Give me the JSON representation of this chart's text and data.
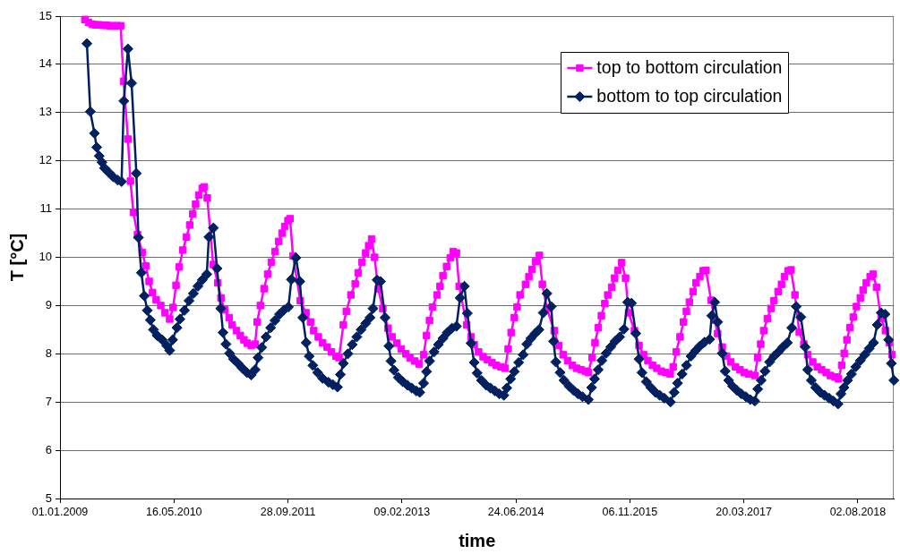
{
  "chart_data": {
    "type": "line",
    "xlabel": "time",
    "ylabel": "T [°C]",
    "xlim": [
      "2009-01-01",
      "2019-01-08"
    ],
    "xticks": [
      {
        "value": "2009-01-01",
        "label": "01.01.2009"
      },
      {
        "value": "2010-05-16",
        "label": "16.05.2010"
      },
      {
        "value": "2011-09-28",
        "label": "28.09.2011"
      },
      {
        "value": "2013-02-09",
        "label": "09.02.2013"
      },
      {
        "value": "2014-06-24",
        "label": "24.06.2014"
      },
      {
        "value": "2015-11-06",
        "label": "06.11.2015"
      },
      {
        "value": "2017-03-20",
        "label": "20.03.2017"
      },
      {
        "value": "2018-08-02",
        "label": "02.08.2018"
      }
    ],
    "ylim": [
      5,
      15
    ],
    "yticks": [
      5,
      6,
      7,
      8,
      9,
      10,
      11,
      12,
      13,
      14,
      15
    ],
    "grid": "y",
    "legend": "top right",
    "line_style": "solid",
    "series": [
      {
        "name": "top to bottom circulation",
        "color": "#ff00ff",
        "marker": "square",
        "x": [
          "2009-04-20",
          "2009-05-06",
          "2009-05-22",
          "2009-06-06",
          "2009-06-22",
          "2009-07-08",
          "2009-07-23",
          "2009-08-08",
          "2009-08-24",
          "2009-09-08",
          "2009-09-24",
          "2009-10-07",
          "2009-10-26",
          "2009-11-06",
          "2009-11-19",
          "2009-12-07",
          "2009-12-28",
          "2010-01-12",
          "2010-01-27",
          "2010-02-11",
          "2010-02-27",
          "2010-03-19",
          "2010-04-07",
          "2010-04-27",
          "2010-05-12",
          "2010-05-25",
          "2010-06-08",
          "2010-06-24",
          "2010-07-10",
          "2010-07-24",
          "2010-08-06",
          "2010-08-19",
          "2010-09-02",
          "2010-09-17",
          "2010-09-26",
          "2010-10-09",
          "2010-11-04",
          "2010-11-24",
          "2010-12-08",
          "2010-12-24",
          "2011-01-13",
          "2011-01-26",
          "2011-02-14",
          "2011-03-03",
          "2011-03-19",
          "2011-04-03",
          "2011-04-20",
          "2011-05-07",
          "2011-05-16",
          "2011-05-30",
          "2011-06-15",
          "2011-07-01",
          "2011-07-17",
          "2011-08-02",
          "2011-08-18",
          "2011-09-02",
          "2011-09-14",
          "2011-09-28",
          "2011-10-07",
          "2011-10-20",
          "2011-11-21",
          "2011-12-16",
          "2012-01-05",
          "2012-01-19",
          "2012-02-08",
          "2012-02-27",
          "2012-03-18",
          "2012-04-06",
          "2012-04-26",
          "2012-05-09",
          "2012-05-28",
          "2012-06-10",
          "2012-06-30",
          "2012-07-19",
          "2012-08-01",
          "2012-08-18",
          "2012-09-03",
          "2012-09-16",
          "2012-09-29",
          "2012-10-12",
          "2012-10-28",
          "2012-11-17",
          "2012-12-10",
          "2012-12-28",
          "2013-01-18",
          "2013-02-06",
          "2013-02-26",
          "2013-03-17",
          "2013-04-06",
          "2013-04-26",
          "2013-05-15",
          "2013-05-28",
          "2013-06-10",
          "2013-06-23",
          "2013-07-13",
          "2013-07-26",
          "2013-08-08",
          "2013-08-24",
          "2013-09-09",
          "2013-09-22",
          "2013-10-06",
          "2013-10-18",
          "2013-11-20",
          "2013-12-09",
          "2013-12-23",
          "2014-01-11",
          "2014-01-31",
          "2014-02-19",
          "2014-03-11",
          "2014-03-30",
          "2014-04-19",
          "2014-05-08",
          "2014-05-21",
          "2014-06-03",
          "2014-06-17",
          "2014-06-29",
          "2014-07-12",
          "2014-08-05",
          "2014-08-20",
          "2014-09-03",
          "2014-09-18",
          "2014-10-05",
          "2014-10-18",
          "2014-11-07",
          "2014-12-09",
          "2014-12-29",
          "2015-01-17",
          "2015-02-06",
          "2015-02-26",
          "2015-03-17",
          "2015-04-06",
          "2015-04-25",
          "2015-05-08",
          "2015-05-24",
          "2015-06-06",
          "2015-06-20",
          "2015-07-04",
          "2015-07-19",
          "2015-08-01",
          "2015-08-18",
          "2015-08-31",
          "2015-09-15",
          "2015-10-01",
          "2015-10-18",
          "2015-10-31",
          "2015-11-26",
          "2015-12-16",
          "2016-01-05",
          "2016-01-24",
          "2016-02-13",
          "2016-03-03",
          "2016-03-23",
          "2016-04-11",
          "2016-05-01",
          "2016-05-14",
          "2016-05-27",
          "2016-06-13",
          "2016-06-28",
          "2016-07-11",
          "2016-07-24",
          "2016-08-09",
          "2016-08-22",
          "2016-09-08",
          "2016-09-22",
          "2016-10-05",
          "2016-10-27",
          "2016-11-12",
          "2016-11-25",
          "2016-12-15",
          "2017-01-03",
          "2017-01-22",
          "2017-02-11",
          "2017-03-03",
          "2017-03-22",
          "2017-04-11",
          "2017-05-07",
          "2017-05-20",
          "2017-06-02",
          "2017-06-15",
          "2017-07-01",
          "2017-07-17",
          "2017-07-30",
          "2017-08-17",
          "2017-09-01",
          "2017-09-14",
          "2017-09-30",
          "2017-10-13",
          "2017-10-30",
          "2017-11-18",
          "2017-12-08",
          "2017-12-25",
          "2018-01-16",
          "2018-02-05",
          "2018-02-24",
          "2018-03-16",
          "2018-04-04",
          "2018-04-24",
          "2018-05-09",
          "2018-05-23",
          "2018-06-03",
          "2018-06-15",
          "2018-06-28",
          "2018-07-13",
          "2018-07-27",
          "2018-08-13",
          "2018-08-25",
          "2018-09-08",
          "2018-09-25",
          "2018-10-08",
          "2018-10-23",
          "2018-11-12",
          "2018-12-01",
          "2018-12-18",
          "2018-12-30"
        ],
        "values": [
          14.93,
          14.87,
          14.83,
          14.82,
          14.82,
          14.81,
          14.81,
          14.8,
          14.8,
          14.8,
          14.8,
          13.65,
          12.45,
          11.58,
          10.93,
          10.47,
          10.1,
          9.82,
          9.5,
          9.27,
          9.12,
          9.0,
          8.85,
          8.72,
          8.96,
          9.42,
          9.8,
          10.15,
          10.42,
          10.67,
          10.9,
          11.1,
          11.29,
          11.43,
          11.46,
          11.23,
          9.85,
          9.47,
          9.16,
          8.91,
          8.75,
          8.6,
          8.48,
          8.38,
          8.29,
          8.22,
          8.17,
          8.2,
          8.66,
          9.0,
          9.35,
          9.65,
          9.9,
          10.12,
          10.33,
          10.5,
          10.64,
          10.76,
          10.8,
          10.03,
          9.1,
          8.85,
          8.66,
          8.48,
          8.35,
          8.23,
          8.14,
          8.04,
          7.95,
          7.92,
          8.6,
          8.88,
          9.22,
          9.45,
          9.68,
          9.9,
          10.09,
          10.24,
          10.38,
          10.0,
          9.34,
          8.94,
          8.53,
          8.35,
          8.22,
          8.1,
          8.0,
          7.91,
          7.85,
          7.79,
          7.98,
          8.38,
          8.69,
          8.97,
          9.22,
          9.4,
          9.62,
          9.81,
          9.99,
          10.12,
          10.09,
          9.4,
          8.6,
          8.35,
          8.19,
          8.04,
          7.94,
          7.88,
          7.82,
          7.76,
          7.73,
          7.7,
          8.1,
          8.44,
          8.75,
          8.97,
          9.22,
          9.44,
          9.6,
          9.75,
          9.91,
          10.04,
          9.44,
          8.94,
          8.48,
          8.17,
          7.98,
          7.86,
          7.76,
          7.7,
          7.67,
          7.64,
          7.61,
          7.92,
          8.23,
          8.54,
          8.79,
          9.04,
          9.22,
          9.38,
          9.57,
          9.73,
          9.89,
          9.57,
          8.85,
          8.48,
          8.17,
          7.98,
          7.86,
          7.76,
          7.7,
          7.64,
          7.61,
          7.58,
          7.73,
          8.04,
          8.35,
          8.66,
          8.88,
          9.07,
          9.29,
          9.47,
          9.6,
          9.72,
          9.73,
          9.11,
          8.7,
          8.42,
          8.14,
          7.95,
          7.83,
          7.73,
          7.67,
          7.61,
          7.58,
          7.55,
          7.92,
          8.2,
          8.48,
          8.73,
          8.94,
          9.1,
          9.29,
          9.44,
          9.6,
          9.72,
          9.74,
          9.22,
          8.45,
          8.2,
          7.98,
          7.83,
          7.73,
          7.67,
          7.61,
          7.55,
          7.52,
          7.48,
          7.76,
          8.01,
          8.29,
          8.54,
          8.76,
          8.98,
          9.16,
          9.32,
          9.47,
          9.6,
          9.65,
          9.38,
          8.73,
          8.48,
          8.23,
          7.98
        ]
      },
      {
        "name": "bottom to top circulation",
        "color": "#002060",
        "marker": "diamond",
        "x": [
          "2009-04-29",
          "2009-05-14",
          "2009-06-01",
          "2009-06-11",
          "2009-06-22",
          "2009-07-04",
          "2009-07-15",
          "2009-08-03",
          "2009-08-22",
          "2009-09-11",
          "2009-09-28",
          "2009-10-08",
          "2009-10-26",
          "2009-11-11",
          "2009-12-02",
          "2009-12-11",
          "2009-12-24",
          "2010-01-06",
          "2010-01-19",
          "2010-02-01",
          "2010-02-15",
          "2010-03-03",
          "2010-03-25",
          "2010-04-14",
          "2010-04-27",
          "2010-05-10",
          "2010-05-29",
          "2010-06-11",
          "2010-07-01",
          "2010-07-21",
          "2010-08-09",
          "2010-08-29",
          "2010-09-17",
          "2010-10-07",
          "2010-10-16",
          "2010-11-05",
          "2010-11-21",
          "2010-12-07",
          "2010-12-17",
          "2010-12-30",
          "2011-01-15",
          "2011-02-01",
          "2011-02-21",
          "2011-03-12",
          "2011-04-01",
          "2011-04-20",
          "2011-05-07",
          "2011-05-20",
          "2011-06-05",
          "2011-06-24",
          "2011-07-14",
          "2011-08-02",
          "2011-08-22",
          "2011-09-11",
          "2011-09-30",
          "2011-10-13",
          "2011-11-02",
          "2011-11-19",
          "2011-12-02",
          "2011-12-17",
          "2011-12-30",
          "2012-01-15",
          "2012-02-05",
          "2012-02-27",
          "2012-03-24",
          "2012-04-12",
          "2012-05-02",
          "2012-05-15",
          "2012-05-28",
          "2012-06-17",
          "2012-07-06",
          "2012-07-26",
          "2012-08-14",
          "2012-09-03",
          "2012-09-22",
          "2012-10-05",
          "2012-10-23",
          "2012-11-07",
          "2012-11-27",
          "2012-12-14",
          "2012-12-23",
          "2013-01-05",
          "2013-01-24",
          "2013-02-13",
          "2013-03-05",
          "2013-03-24",
          "2013-04-13",
          "2013-04-28",
          "2013-05-15",
          "2013-05-28",
          "2013-06-10",
          "2013-06-30",
          "2013-07-19",
          "2013-08-08",
          "2013-08-27",
          "2013-09-16",
          "2013-10-06",
          "2013-10-22",
          "2013-11-10",
          "2013-11-23",
          "2013-12-09",
          "2013-12-23",
          "2014-01-05",
          "2014-01-24",
          "2014-02-13",
          "2014-03-04",
          "2014-03-24",
          "2014-04-12",
          "2014-05-02",
          "2014-05-15",
          "2014-06-01",
          "2014-06-17",
          "2014-07-06",
          "2014-07-26",
          "2014-08-11",
          "2014-08-29",
          "2014-09-16",
          "2014-10-03",
          "2014-10-22",
          "2014-11-07",
          "2014-11-26",
          "2014-12-06",
          "2014-12-16",
          "2015-01-04",
          "2015-01-21",
          "2015-02-12",
          "2015-03-04",
          "2015-03-23",
          "2015-04-12",
          "2015-05-08",
          "2015-05-22",
          "2015-06-04",
          "2015-06-20",
          "2015-07-06",
          "2015-07-25",
          "2015-08-14",
          "2015-09-02",
          "2015-09-22",
          "2015-10-11",
          "2015-10-27",
          "2015-11-13",
          "2015-12-02",
          "2015-12-16",
          "2015-12-29",
          "2016-01-17",
          "2016-02-06",
          "2016-02-26",
          "2016-03-16",
          "2016-04-05",
          "2016-05-02",
          "2016-05-18",
          "2016-06-02",
          "2016-06-22",
          "2016-07-11",
          "2016-07-31",
          "2016-08-19",
          "2016-09-08",
          "2016-09-28",
          "2016-10-21",
          "2016-10-30",
          "2016-11-12",
          "2016-11-25",
          "2016-12-15",
          "2016-12-28",
          "2017-01-12",
          "2017-01-29",
          "2017-02-18",
          "2017-03-09",
          "2017-03-29",
          "2017-04-17",
          "2017-05-07",
          "2017-05-20",
          "2017-06-04",
          "2017-06-21",
          "2017-07-11",
          "2017-07-30",
          "2017-08-19",
          "2017-09-07",
          "2017-09-27",
          "2017-10-16",
          "2017-11-05",
          "2017-11-25",
          "2017-12-14",
          "2017-12-25",
          "2018-01-10",
          "2018-01-29",
          "2018-02-18",
          "2018-03-09",
          "2018-03-29",
          "2018-04-17",
          "2018-05-07",
          "2018-05-20",
          "2018-06-02",
          "2018-06-18",
          "2018-07-05",
          "2018-07-24",
          "2018-08-13",
          "2018-09-01",
          "2018-09-21",
          "2018-10-10",
          "2018-10-26",
          "2018-11-12",
          "2018-11-29",
          "2018-12-15",
          "2018-12-27",
          "2019-01-07"
        ],
        "values": [
          14.43,
          13.02,
          12.57,
          12.28,
          12.1,
          11.97,
          11.85,
          11.76,
          11.67,
          11.6,
          11.57,
          13.24,
          14.32,
          13.61,
          11.74,
          10.41,
          9.68,
          9.2,
          8.9,
          8.7,
          8.5,
          8.38,
          8.29,
          8.17,
          8.07,
          8.29,
          8.54,
          8.72,
          8.9,
          9.1,
          9.25,
          9.4,
          9.53,
          9.65,
          10.42,
          10.61,
          9.77,
          8.94,
          8.44,
          8.2,
          8.01,
          7.89,
          7.8,
          7.7,
          7.61,
          7.56,
          7.67,
          7.92,
          8.13,
          8.35,
          8.54,
          8.69,
          8.82,
          8.91,
          8.97,
          9.54,
          9.99,
          9.5,
          8.75,
          8.23,
          7.95,
          7.76,
          7.61,
          7.49,
          7.41,
          7.36,
          7.31,
          7.57,
          7.8,
          8.0,
          8.19,
          8.35,
          8.5,
          8.63,
          8.75,
          8.94,
          9.53,
          9.5,
          8.75,
          8.16,
          7.85,
          7.66,
          7.51,
          7.42,
          7.35,
          7.29,
          7.23,
          7.2,
          7.39,
          7.63,
          7.85,
          8.04,
          8.19,
          8.32,
          8.44,
          8.53,
          8.57,
          9.16,
          9.4,
          8.84,
          8.22,
          7.82,
          7.6,
          7.45,
          7.35,
          7.29,
          7.23,
          7.17,
          7.14,
          7.29,
          7.48,
          7.63,
          7.82,
          7.98,
          8.2,
          8.32,
          8.42,
          8.5,
          8.85,
          9.25,
          8.98,
          8.26,
          7.83,
          7.61,
          7.45,
          7.33,
          7.24,
          7.17,
          7.11,
          7.05,
          7.3,
          7.48,
          7.67,
          7.86,
          8.01,
          8.14,
          8.26,
          8.35,
          8.51,
          9.07,
          9.05,
          8.42,
          7.89,
          7.61,
          7.42,
          7.3,
          7.2,
          7.14,
          7.08,
          7.0,
          7.2,
          7.39,
          7.58,
          7.76,
          7.95,
          8.06,
          8.16,
          8.24,
          8.3,
          8.79,
          9.07,
          8.66,
          8.01,
          7.64,
          7.45,
          7.33,
          7.24,
          7.17,
          7.11,
          7.05,
          7.02,
          7.27,
          7.45,
          7.64,
          7.83,
          7.95,
          8.04,
          8.14,
          8.23,
          8.54,
          8.98,
          8.76,
          8.14,
          7.67,
          7.45,
          7.3,
          7.2,
          7.14,
          7.08,
          7.02,
          6.96,
          7.17,
          7.3,
          7.45,
          7.58,
          7.73,
          7.86,
          7.98,
          8.11,
          8.23,
          8.6,
          8.85,
          8.82,
          8.29,
          7.8,
          7.45
        ]
      }
    ]
  }
}
